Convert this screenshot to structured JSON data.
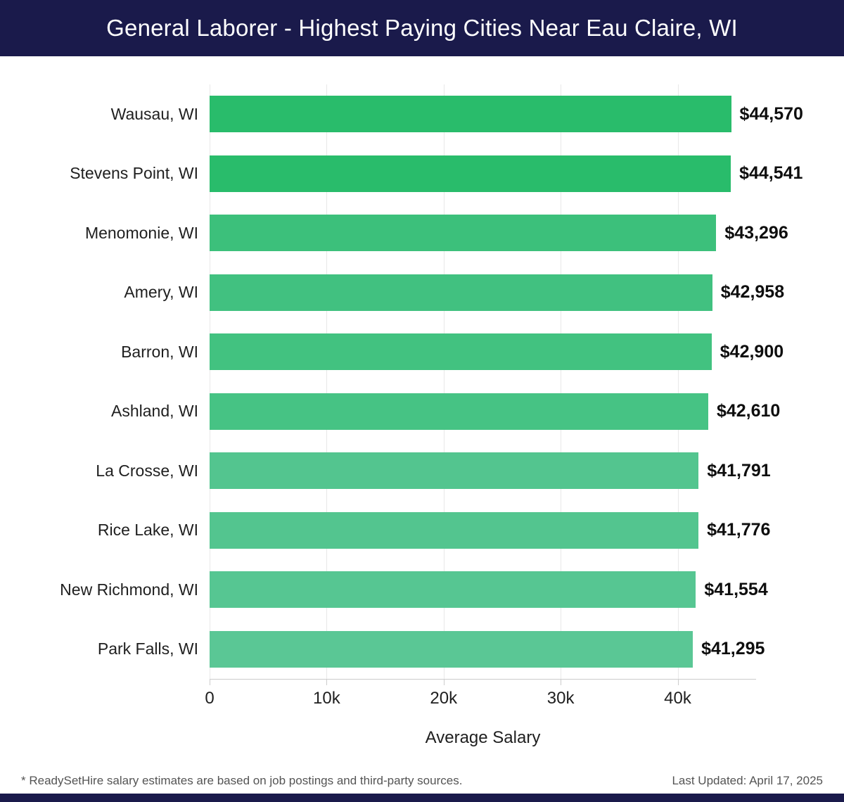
{
  "header": {
    "bg_color": "#1a1a4b",
    "text_color": "#ffffff"
  },
  "chart_data": {
    "type": "bar",
    "orientation": "horizontal",
    "title": "General Laborer - Highest Paying Cities Near Eau Claire, WI",
    "xlabel": "Average Salary",
    "categories": [
      "Wausau, WI",
      "Stevens Point, WI",
      "Menomonie, WI",
      "Amery, WI",
      "Barron, WI",
      "Ashland, WI",
      "La Crosse, WI",
      "Rice Lake, WI",
      "New Richmond, WI",
      "Park Falls, WI"
    ],
    "values": [
      44570,
      44541,
      43296,
      42958,
      42900,
      42610,
      41791,
      41776,
      41554,
      41295
    ],
    "value_labels": [
      "$44,570",
      "$44,541",
      "$43,296",
      "$42,958",
      "$42,900",
      "$42,610",
      "$41,791",
      "$41,776",
      "$41,554",
      "$41,295"
    ],
    "bar_colors": [
      "#29bc6b",
      "#29bc6b",
      "#3cc07b",
      "#41c180",
      "#42c280",
      "#46c384",
      "#53c58f",
      "#53c58f",
      "#56c692",
      "#5ac795"
    ],
    "xlim": [
      0,
      46700
    ],
    "xticks": [
      0,
      10000,
      20000,
      30000,
      40000
    ],
    "xtick_labels": [
      "0",
      "10k",
      "20k",
      "30k",
      "40k"
    ],
    "grid": "vertical",
    "gridline_color": "#e8e8e8",
    "axis_color": "#cccccc"
  },
  "footer": {
    "disclaimer": "* ReadySetHire salary estimates are based on job postings and third-party sources.",
    "last_updated": "Last Updated: April 17, 2025"
  }
}
